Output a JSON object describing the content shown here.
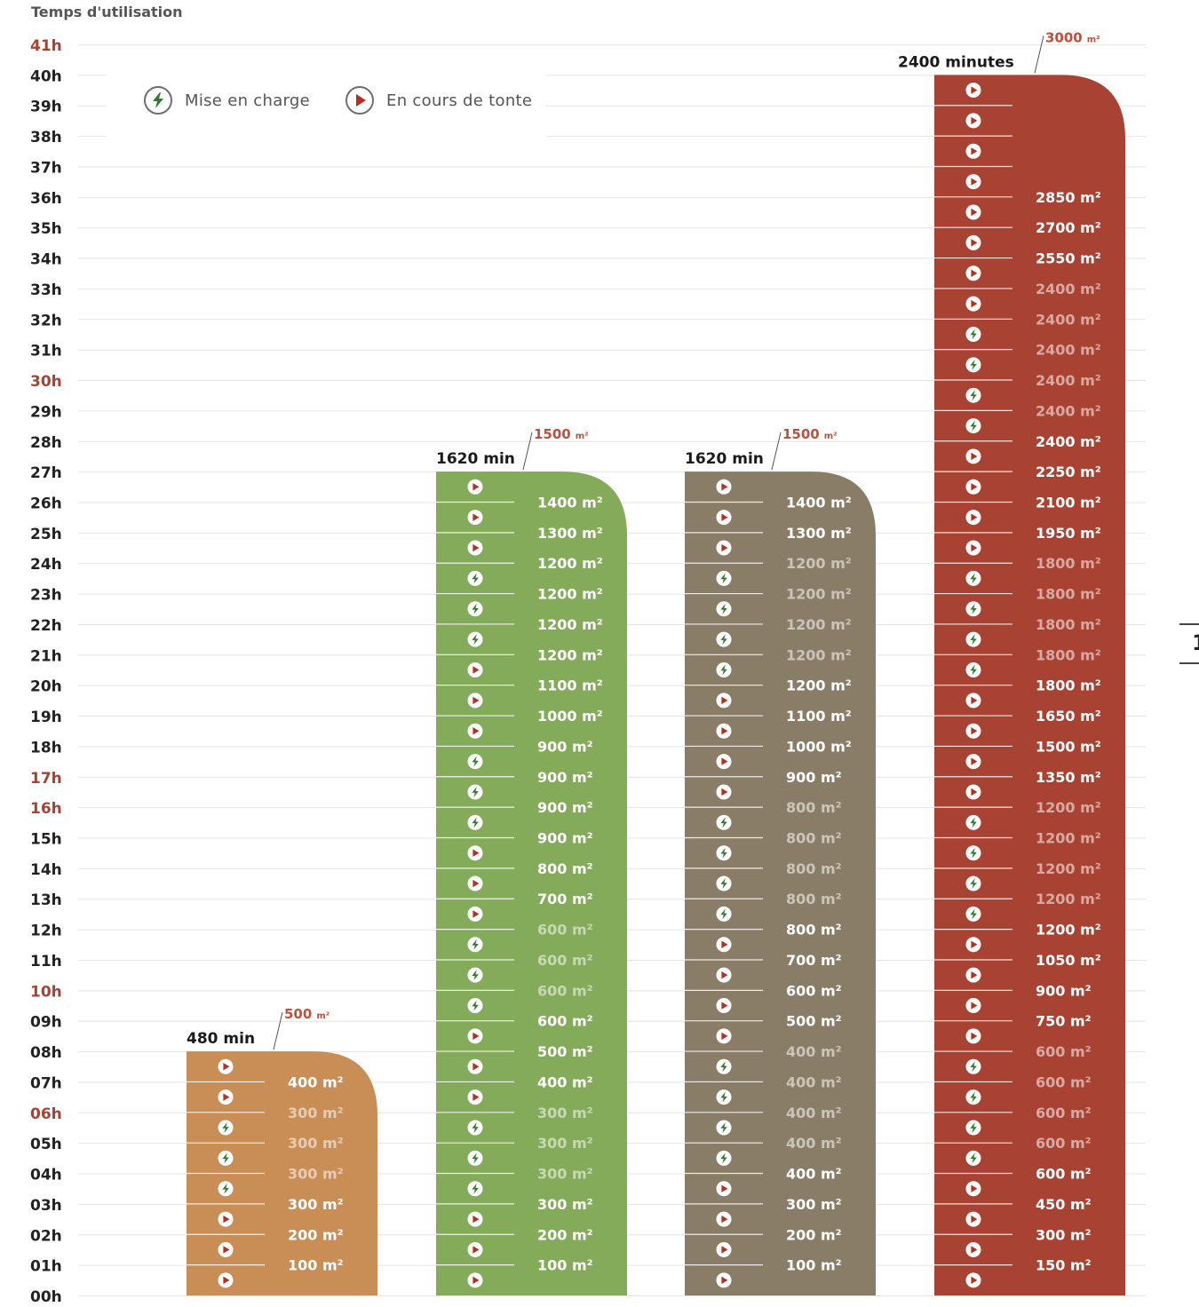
{
  "chart_data": {
    "type": "bar",
    "ylabel": "Temps d'utilisation",
    "y_unit": "hours",
    "ylim": [
      0,
      41
    ],
    "y_ticks": [
      "00h",
      "01h",
      "02h",
      "03h",
      "04h",
      "05h",
      "06h",
      "07h",
      "08h",
      "09h",
      "10h",
      "11h",
      "12h",
      "13h",
      "14h",
      "15h",
      "16h",
      "17h",
      "18h",
      "19h",
      "20h",
      "21h",
      "22h",
      "23h",
      "24h",
      "25h",
      "26h",
      "27h",
      "28h",
      "29h",
      "30h",
      "31h",
      "32h",
      "33h",
      "34h",
      "35h",
      "36h",
      "37h",
      "38h",
      "39h",
      "40h",
      "41h"
    ],
    "highlighted_ticks": [
      "06h",
      "10h",
      "16h",
      "17h",
      "30h",
      "41h"
    ],
    "legend": [
      {
        "key": "charge",
        "label": "Mise en charge",
        "icon": "lightning-icon"
      },
      {
        "key": "mow",
        "label": "En cours de tonte",
        "icon": "play-icon"
      }
    ],
    "series": [
      {
        "name": "500 m²",
        "color": "#c98d56",
        "duration_label": "480 min",
        "capacity_value": "500",
        "capacity_unit": "m²",
        "hours": 8,
        "steps": [
          {
            "state": "mow",
            "area": "100 m²",
            "strong": true
          },
          {
            "state": "mow",
            "area": "200 m²",
            "strong": true
          },
          {
            "state": "mow",
            "area": "300 m²",
            "strong": true
          },
          {
            "state": "charge",
            "area": "300 m²",
            "strong": false
          },
          {
            "state": "charge",
            "area": "300 m²",
            "strong": false
          },
          {
            "state": "charge",
            "area": "300 m²",
            "strong": false
          },
          {
            "state": "mow",
            "area": "400 m²",
            "strong": true
          },
          {
            "state": "mow",
            "area": "",
            "strong": true
          }
        ]
      },
      {
        "name": "1500 m² (A)",
        "color": "#84ab5a",
        "duration_label": "1620 min",
        "capacity_value": "1500",
        "capacity_unit": "m²",
        "hours": 27,
        "steps": [
          {
            "state": "mow",
            "area": "100 m²",
            "strong": true
          },
          {
            "state": "mow",
            "area": "200 m²",
            "strong": true
          },
          {
            "state": "mow",
            "area": "300 m²",
            "strong": true
          },
          {
            "state": "charge",
            "area": "300 m²",
            "strong": false
          },
          {
            "state": "charge",
            "area": "300 m²",
            "strong": false
          },
          {
            "state": "charge",
            "area": "300 m²",
            "strong": false
          },
          {
            "state": "mow",
            "area": "400 m²",
            "strong": true
          },
          {
            "state": "mow",
            "area": "500 m²",
            "strong": true
          },
          {
            "state": "mow",
            "area": "600 m²",
            "strong": true
          },
          {
            "state": "charge",
            "area": "600 m²",
            "strong": false
          },
          {
            "state": "charge",
            "area": "600 m²",
            "strong": false
          },
          {
            "state": "charge",
            "area": "600 m²",
            "strong": false
          },
          {
            "state": "mow",
            "area": "700 m²",
            "strong": true
          },
          {
            "state": "mow",
            "area": "800 m²",
            "strong": true
          },
          {
            "state": "mow",
            "area": "900 m²",
            "strong": true
          },
          {
            "state": "charge",
            "area": "900 m²",
            "strong": true
          },
          {
            "state": "charge",
            "area": "900 m²",
            "strong": true
          },
          {
            "state": "charge",
            "area": "900 m²",
            "strong": true
          },
          {
            "state": "mow",
            "area": "1000 m²",
            "strong": true
          },
          {
            "state": "mow",
            "area": "1100 m²",
            "strong": true
          },
          {
            "state": "mow",
            "area": "1200 m²",
            "strong": true
          },
          {
            "state": "charge",
            "area": "1200 m²",
            "strong": true
          },
          {
            "state": "charge",
            "area": "1200 m²",
            "strong": true
          },
          {
            "state": "charge",
            "area": "1200 m²",
            "strong": true
          },
          {
            "state": "mow",
            "area": "1300 m²",
            "strong": true
          },
          {
            "state": "mow",
            "area": "1400 m²",
            "strong": true
          },
          {
            "state": "mow",
            "area": "",
            "strong": true
          }
        ]
      },
      {
        "name": "1500 m² (B)",
        "color": "#8a7d67",
        "duration_label": "1620 min",
        "capacity_value": "1500",
        "capacity_unit": "m²",
        "hours": 27,
        "steps": [
          {
            "state": "mow",
            "area": "100 m²",
            "strong": true
          },
          {
            "state": "mow",
            "area": "200 m²",
            "strong": true
          },
          {
            "state": "mow",
            "area": "300 m²",
            "strong": true
          },
          {
            "state": "mow",
            "area": "400 m²",
            "strong": true
          },
          {
            "state": "charge",
            "area": "400 m²",
            "strong": false
          },
          {
            "state": "charge",
            "area": "400 m²",
            "strong": false
          },
          {
            "state": "charge",
            "area": "400 m²",
            "strong": false
          },
          {
            "state": "charge",
            "area": "400 m²",
            "strong": false
          },
          {
            "state": "mow",
            "area": "500 m²",
            "strong": true
          },
          {
            "state": "mow",
            "area": "600 m²",
            "strong": true
          },
          {
            "state": "mow",
            "area": "700 m²",
            "strong": true
          },
          {
            "state": "mow",
            "area": "800 m²",
            "strong": true
          },
          {
            "state": "charge",
            "area": "800 m²",
            "strong": false
          },
          {
            "state": "charge",
            "area": "800 m²",
            "strong": false
          },
          {
            "state": "charge",
            "area": "800 m²",
            "strong": false
          },
          {
            "state": "charge",
            "area": "800 m²",
            "strong": false
          },
          {
            "state": "mow",
            "area": "900 m²",
            "strong": true
          },
          {
            "state": "mow",
            "area": "1000 m²",
            "strong": true
          },
          {
            "state": "mow",
            "area": "1100 m²",
            "strong": true
          },
          {
            "state": "mow",
            "area": "1200 m²",
            "strong": true
          },
          {
            "state": "charge",
            "area": "1200 m²",
            "strong": false
          },
          {
            "state": "charge",
            "area": "1200 m²",
            "strong": false
          },
          {
            "state": "charge",
            "area": "1200 m²",
            "strong": false
          },
          {
            "state": "charge",
            "area": "1200 m²",
            "strong": false
          },
          {
            "state": "mow",
            "area": "1300 m²",
            "strong": true
          },
          {
            "state": "mow",
            "area": "1400 m²",
            "strong": true
          },
          {
            "state": "mow",
            "area": "",
            "strong": true
          }
        ]
      },
      {
        "name": "3000 m²",
        "color": "#a84233",
        "duration_label": "2400 minutes",
        "capacity_value": "3000",
        "capacity_unit": "m²",
        "hours": 40,
        "steps": [
          {
            "state": "mow",
            "area": "150 m²",
            "strong": true
          },
          {
            "state": "mow",
            "area": "300 m²",
            "strong": true
          },
          {
            "state": "mow",
            "area": "450 m²",
            "strong": true
          },
          {
            "state": "mow",
            "area": "600 m²",
            "strong": true
          },
          {
            "state": "charge",
            "area": "600 m²",
            "strong": false
          },
          {
            "state": "charge",
            "area": "600 m²",
            "strong": false
          },
          {
            "state": "charge",
            "area": "600 m²",
            "strong": false
          },
          {
            "state": "charge",
            "area": "600 m²",
            "strong": false
          },
          {
            "state": "mow",
            "area": "750 m²",
            "strong": true
          },
          {
            "state": "mow",
            "area": "900 m²",
            "strong": true
          },
          {
            "state": "mow",
            "area": "1050 m²",
            "strong": true
          },
          {
            "state": "mow",
            "area": "1200 m²",
            "strong": true
          },
          {
            "state": "charge",
            "area": "1200 m²",
            "strong": false
          },
          {
            "state": "charge",
            "area": "1200 m²",
            "strong": false
          },
          {
            "state": "charge",
            "area": "1200 m²",
            "strong": false
          },
          {
            "state": "charge",
            "area": "1200 m²",
            "strong": false
          },
          {
            "state": "mow",
            "area": "1350 m²",
            "strong": true
          },
          {
            "state": "mow",
            "area": "1500 m²",
            "strong": true
          },
          {
            "state": "mow",
            "area": "1650 m²",
            "strong": true
          },
          {
            "state": "mow",
            "area": "1800 m²",
            "strong": true
          },
          {
            "state": "charge",
            "area": "1800 m²",
            "strong": false
          },
          {
            "state": "charge",
            "area": "1800 m²",
            "strong": false
          },
          {
            "state": "charge",
            "area": "1800 m²",
            "strong": false
          },
          {
            "state": "charge",
            "area": "1800 m²",
            "strong": false
          },
          {
            "state": "mow",
            "area": "1950 m²",
            "strong": true
          },
          {
            "state": "mow",
            "area": "2100 m²",
            "strong": true
          },
          {
            "state": "mow",
            "area": "2250 m²",
            "strong": true
          },
          {
            "state": "mow",
            "area": "2400 m²",
            "strong": true
          },
          {
            "state": "charge",
            "area": "2400 m²",
            "strong": false
          },
          {
            "state": "charge",
            "area": "2400 m²",
            "strong": false
          },
          {
            "state": "charge",
            "area": "2400 m²",
            "strong": false
          },
          {
            "state": "charge",
            "area": "2400 m²",
            "strong": false
          },
          {
            "state": "mow",
            "area": "2400 m²",
            "strong": false
          },
          {
            "state": "mow",
            "area": "2550 m²",
            "strong": true
          },
          {
            "state": "mow",
            "area": "2700 m²",
            "strong": true
          },
          {
            "state": "mow",
            "area": "2850 m²",
            "strong": true
          },
          {
            "state": "mow",
            "area": "",
            "strong": true
          },
          {
            "state": "mow",
            "area": "",
            "strong": true
          },
          {
            "state": "mow",
            "area": "",
            "strong": true
          },
          {
            "state": "mow",
            "area": "",
            "strong": true
          }
        ]
      }
    ]
  },
  "edge_fragment": "1",
  "colors": {
    "tick_normal": "#222222",
    "tick_highlight": "#a84233",
    "grid": "#e4e4e4",
    "annotation": "#c0503a",
    "label_strong": "#ffffff",
    "label_faded": "rgba(255,255,255,0.55)",
    "charge_icon": "#2f7a2f",
    "mow_icon": "#b5301f"
  }
}
